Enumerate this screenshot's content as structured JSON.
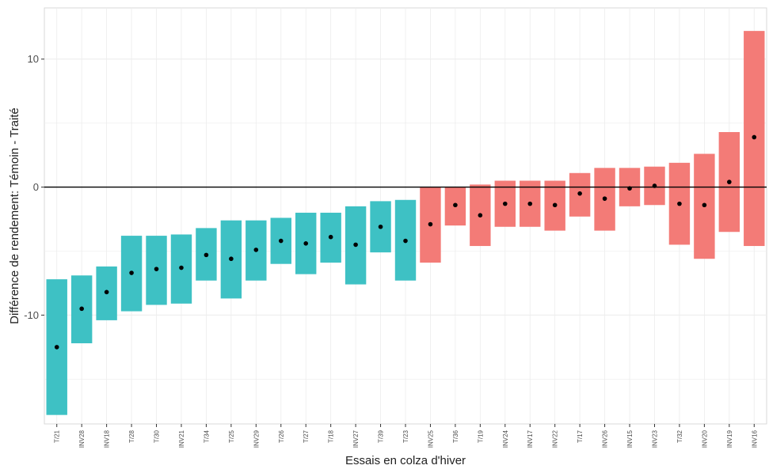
{
  "chart_data": {
    "type": "bar",
    "title": "",
    "xlabel": "Essais en colza d'hiver",
    "ylabel": "Différence de rendement: Témoin - Traité",
    "ylim": [
      -18.5,
      14
    ],
    "yticks": [
      -10,
      0,
      10
    ],
    "grid": true,
    "reference_line": 0,
    "colors": {
      "negative": "#3ec1c4",
      "positive": "#f37b77",
      "point": "#000000",
      "zero_line": "#000000",
      "grid": "#ececec"
    },
    "categories": [
      "T/21",
      "INV28",
      "INV18",
      "T/28",
      "T/30",
      "INV21",
      "T/34",
      "T/25",
      "INV29",
      "T/26",
      "T/27",
      "T/18",
      "INV27",
      "T/39",
      "T/23",
      "INV25",
      "T/36",
      "T/19",
      "INV24",
      "INV17",
      "INV22",
      "T/17",
      "INV26",
      "INV15",
      "INV23",
      "T/32",
      "INV20",
      "INV19",
      "INV16"
    ],
    "series": [
      {
        "estimate": [
          -12.5,
          -9.5,
          -8.2,
          -6.7,
          -6.4,
          -6.3,
          -5.3,
          -5.6,
          -4.9,
          -4.2,
          -4.4,
          -3.9,
          -4.5,
          -3.1,
          -4.2,
          -2.9,
          -1.4,
          -2.2,
          -1.3,
          -1.3,
          -1.4,
          -0.5,
          -0.9,
          -0.1,
          0.1,
          -1.3,
          -1.4,
          0.4,
          3.9
        ],
        "lower": [
          -17.8,
          -12.2,
          -10.4,
          -9.7,
          -9.2,
          -9.1,
          -7.3,
          -8.7,
          -7.3,
          -6.0,
          -6.8,
          -5.9,
          -7.6,
          -5.1,
          -7.3,
          -5.9,
          -3.0,
          -4.6,
          -3.1,
          -3.1,
          -3.4,
          -2.3,
          -3.4,
          -1.5,
          -1.4,
          -4.5,
          -5.6,
          -3.5,
          -4.6
        ],
        "upper": [
          -7.2,
          -6.9,
          -6.2,
          -3.8,
          -3.8,
          -3.7,
          -3.2,
          -2.6,
          -2.6,
          -2.4,
          -2.0,
          -2.0,
          -1.5,
          -1.1,
          -1.0,
          0.0,
          0.0,
          0.2,
          0.5,
          0.5,
          0.5,
          1.1,
          1.5,
          1.5,
          1.6,
          1.9,
          2.6,
          4.3,
          12.2
        ]
      }
    ]
  }
}
